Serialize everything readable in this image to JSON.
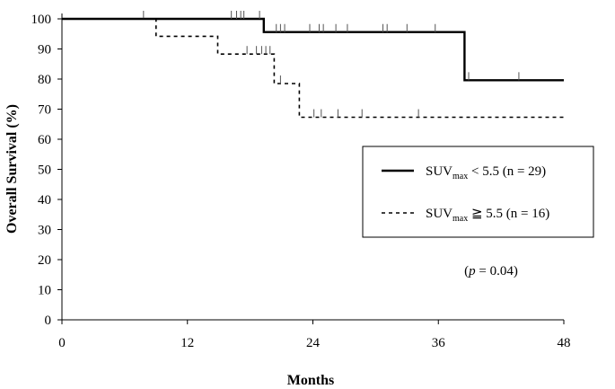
{
  "chart_data": {
    "type": "line",
    "subtype": "kaplan-meier step",
    "xlabel": "Months",
    "ylabel": "Overall Survival (%)",
    "xlim": [
      0,
      48
    ],
    "ylim": [
      0,
      100
    ],
    "xticks": [
      0,
      12,
      24,
      36,
      48
    ],
    "yticks": [
      0,
      10,
      20,
      30,
      40,
      50,
      60,
      70,
      80,
      90,
      100
    ],
    "grid": false,
    "legend_position": "right-middle",
    "annotation": {
      "italic": "p",
      "rest": " = 0.04)",
      "open": "("
    },
    "series": [
      {
        "name_main": "SUV",
        "name_sub": "max",
        "name_rest": " < 5.5  (n = 29)",
        "style": "solid",
        "color": "#000000",
        "steps": [
          [
            0,
            100
          ],
          [
            19.3,
            100
          ],
          [
            19.3,
            95.6
          ],
          [
            38.5,
            95.6
          ],
          [
            38.5,
            79.6
          ],
          [
            48,
            79.6
          ]
        ],
        "censored": [
          [
            7.8,
            100
          ],
          [
            16.2,
            100
          ],
          [
            16.7,
            100
          ],
          [
            17.1,
            100
          ],
          [
            17.4,
            100
          ],
          [
            18.9,
            100
          ],
          [
            20.5,
            95.6
          ],
          [
            20.9,
            95.6
          ],
          [
            21.3,
            95.6
          ],
          [
            23.7,
            95.6
          ],
          [
            24.6,
            95.6
          ],
          [
            25.0,
            95.6
          ],
          [
            26.2,
            95.6
          ],
          [
            27.3,
            95.6
          ],
          [
            30.7,
            95.6
          ],
          [
            31.1,
            95.6
          ],
          [
            33.0,
            95.6
          ],
          [
            35.7,
            95.6
          ],
          [
            38.9,
            79.6
          ],
          [
            43.7,
            79.6
          ]
        ]
      },
      {
        "name_main": "SUV",
        "name_sub": "max",
        "name_rest": " ≧ 5.5  (n = 16)",
        "style": "dashed",
        "color": "#000000",
        "steps": [
          [
            0,
            100
          ],
          [
            9.0,
            100
          ],
          [
            9.0,
            94.2
          ],
          [
            14.9,
            94.2
          ],
          [
            14.9,
            88.3
          ],
          [
            20.3,
            88.3
          ],
          [
            20.3,
            78.5
          ],
          [
            22.7,
            78.5
          ],
          [
            22.7,
            67.3
          ],
          [
            48,
            67.3
          ]
        ],
        "censored": [
          [
            17.7,
            88.3
          ],
          [
            18.6,
            88.3
          ],
          [
            19.1,
            88.3
          ],
          [
            19.5,
            88.3
          ],
          [
            19.9,
            88.3
          ],
          [
            20.9,
            78.5
          ],
          [
            24.1,
            67.3
          ],
          [
            24.8,
            67.3
          ],
          [
            26.4,
            67.3
          ],
          [
            28.7,
            67.3
          ],
          [
            34.1,
            67.3
          ]
        ]
      }
    ]
  }
}
